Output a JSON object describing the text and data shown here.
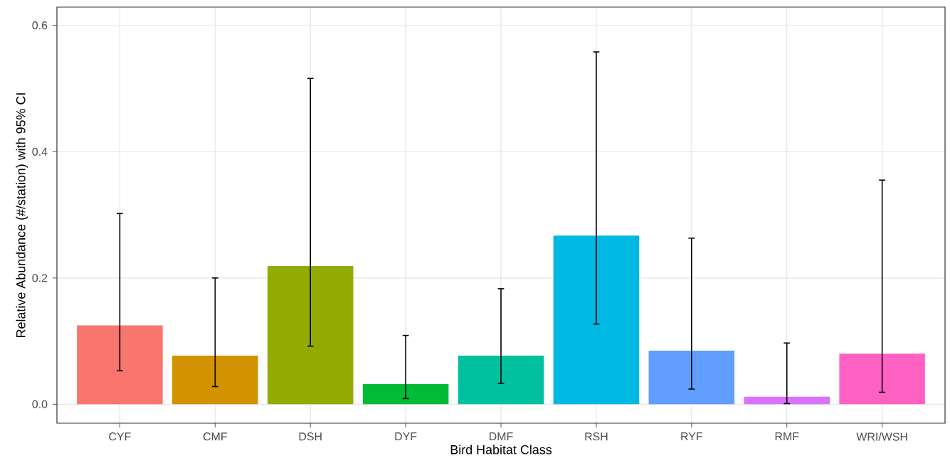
{
  "chart_data": {
    "type": "bar",
    "xlabel": "Bird Habitat Class",
    "ylabel": "Relative Abundance (#/station) with 95% CI",
    "categories": [
      "CYF",
      "CMF",
      "DSH",
      "DYF",
      "DMF",
      "RSH",
      "RYF",
      "RMF",
      "WRI/WSH"
    ],
    "values": [
      0.125,
      0.077,
      0.219,
      0.032,
      0.077,
      0.267,
      0.085,
      0.012,
      0.08
    ],
    "errors": [
      [
        0.053,
        0.302
      ],
      [
        0.028,
        0.2
      ],
      [
        0.092,
        0.516
      ],
      [
        0.009,
        0.109
      ],
      [
        0.033,
        0.183
      ],
      [
        0.127,
        0.558
      ],
      [
        0.024,
        0.263
      ],
      [
        0.001,
        0.097
      ],
      [
        0.019,
        0.355
      ]
    ],
    "colors": [
      "#f8766d",
      "#d39200",
      "#93aa00",
      "#00ba38",
      "#00c19f",
      "#00b9e3",
      "#619cff",
      "#db72fb",
      "#ff61c3"
    ],
    "ylim": [
      -0.03,
      0.629
    ],
    "yticks": [
      {
        "value": 0,
        "label": "0.0"
      },
      0.2,
      0.4,
      0.6
    ],
    "grid": true
  }
}
